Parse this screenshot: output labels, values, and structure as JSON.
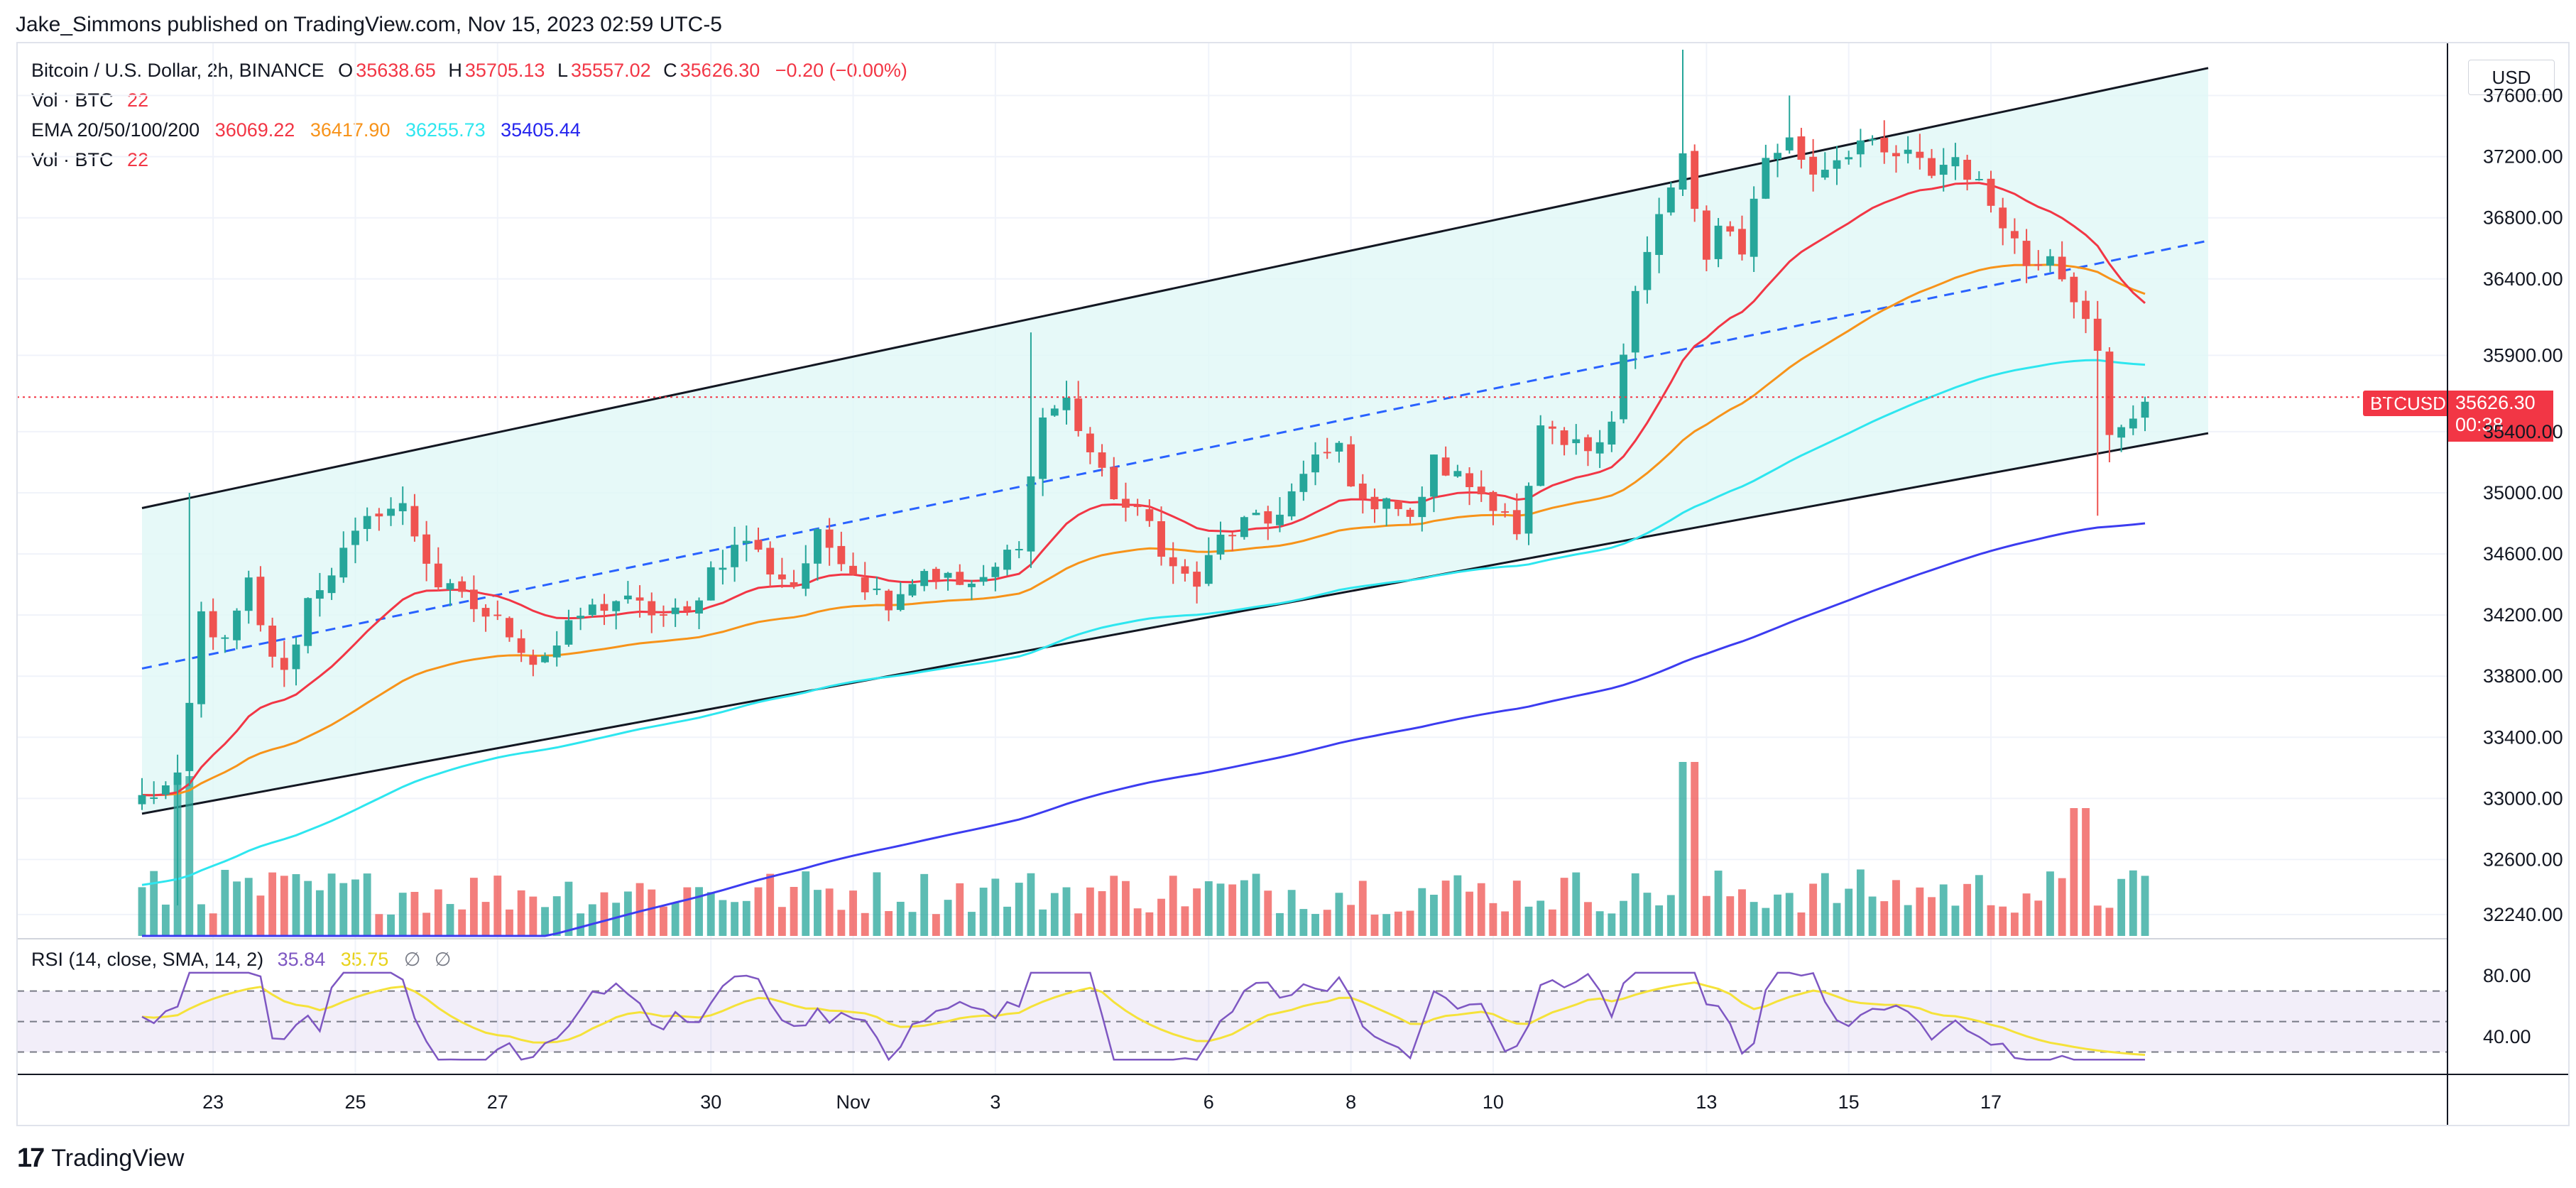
{
  "publisher": "Jake_Simmons published on TradingView.com, Nov 15, 2023 02:59 UTC-5",
  "legend": {
    "symbol": "Bitcoin / U.S. Dollar, 2h, BINANCE",
    "o_label": "O",
    "o": "35638.65",
    "h_label": "H",
    "h": "35705.13",
    "l_label": "L",
    "l": "35557.02",
    "c_label": "C",
    "c": "35626.30",
    "change": "−0.20 (−0.00%)",
    "vol1_label": "Vol · BTC",
    "vol1": "22",
    "ema_label": "EMA 20/50/100/200",
    "ema20": "36069.22",
    "ema50": "36417.90",
    "ema100": "36255.73",
    "ema200": "35405.44",
    "vol2_label": "Vol · BTC",
    "vol2": "22",
    "rsi_label": "RSI (14, close, SMA, 14, 2)",
    "rsi": "35.84",
    "rsi_sma": "35.75",
    "rsi_extra1": "∅",
    "rsi_extra2": "∅"
  },
  "currency": "USD",
  "last_price": {
    "symbol": "BTCUSD",
    "price": "35626.30",
    "countdown": "00:38"
  },
  "brand": "TradingView",
  "colors": {
    "up": "#26a69a",
    "down": "#ef5350",
    "ema20": "#f23645",
    "ema50": "#f7931a",
    "ema100": "#2ee6ef",
    "ema200": "#3c3cf0",
    "channel_fill": "#e0f7f6",
    "rsi": "#7e57c2",
    "rsi_sma": "#f5e23a"
  },
  "chart_data": {
    "type": "candlestick",
    "timeframe": "2h",
    "x_tick_labels": [
      "23",
      "25",
      "27",
      "30",
      "Nov",
      "3",
      "6",
      "8",
      "10",
      "13",
      "15",
      "17"
    ],
    "y_tick_labels": [
      "37600.00",
      "37200.00",
      "36800.00",
      "36400.00",
      "35900.00",
      "35400.00",
      "35000.00",
      "34600.00",
      "34200.00",
      "33800.00",
      "33400.00",
      "33000.00",
      "32600.00",
      "32240.00"
    ],
    "ylim": [
      32100,
      37900
    ],
    "price_anchors": [
      [
        0,
        33000
      ],
      [
        3,
        33100
      ],
      [
        4,
        33600
      ],
      [
        5,
        34200
      ],
      [
        7,
        34000
      ],
      [
        9,
        34400
      ],
      [
        10,
        34100
      ],
      [
        12,
        33800
      ],
      [
        14,
        34300
      ],
      [
        17,
        34600
      ],
      [
        20,
        34900
      ],
      [
        22,
        34900
      ],
      [
        25,
        34400
      ],
      [
        27,
        34300
      ],
      [
        29,
        34200
      ],
      [
        31,
        34100
      ],
      [
        33,
        33900
      ],
      [
        35,
        34000
      ],
      [
        37,
        34200
      ],
      [
        40,
        34300
      ],
      [
        44,
        34200
      ],
      [
        46,
        34200
      ],
      [
        48,
        34500
      ],
      [
        51,
        34700
      ],
      [
        53,
        34500
      ],
      [
        55,
        34400
      ],
      [
        57,
        34700
      ],
      [
        59,
        34600
      ],
      [
        61,
        34400
      ],
      [
        63,
        34300
      ],
      [
        66,
        34500
      ],
      [
        69,
        34400
      ],
      [
        71,
        34400
      ],
      [
        74,
        34700
      ],
      [
        75,
        35100
      ],
      [
        76,
        35500
      ],
      [
        78,
        35600
      ],
      [
        81,
        35100
      ],
      [
        83,
        34900
      ],
      [
        85,
        34800
      ],
      [
        87,
        34500
      ],
      [
        89,
        34400
      ],
      [
        91,
        34700
      ],
      [
        93,
        34800
      ],
      [
        95,
        34800
      ],
      [
        97,
        35000
      ],
      [
        99,
        35200
      ],
      [
        101,
        35300
      ],
      [
        103,
        34900
      ],
      [
        105,
        35000
      ],
      [
        107,
        34800
      ],
      [
        109,
        35200
      ],
      [
        111,
        35100
      ],
      [
        113,
        35000
      ],
      [
        115,
        34900
      ],
      [
        116,
        34700
      ],
      [
        117,
        35000
      ],
      [
        118,
        35400
      ],
      [
        120,
        35300
      ],
      [
        122,
        35300
      ],
      [
        124,
        35500
      ],
      [
        126,
        36300
      ],
      [
        128,
        36800
      ],
      [
        130,
        37200
      ],
      [
        131,
        36800
      ],
      [
        132,
        36500
      ],
      [
        133,
        36800
      ],
      [
        135,
        36600
      ],
      [
        137,
        37200
      ],
      [
        139,
        37300
      ],
      [
        141,
        37100
      ],
      [
        143,
        37200
      ],
      [
        145,
        37300
      ],
      [
        147,
        37200
      ],
      [
        149,
        37200
      ],
      [
        151,
        37100
      ],
      [
        153,
        37200
      ],
      [
        155,
        37000
      ],
      [
        157,
        36800
      ],
      [
        159,
        36500
      ],
      [
        161,
        36600
      ],
      [
        163,
        36300
      ],
      [
        165,
        35900
      ],
      [
        166,
        35350
      ],
      [
        167,
        35450
      ],
      [
        169,
        35600
      ]
    ],
    "volume_range_btc": [
      0,
      5000
    ],
    "indicators": [
      "EMA 20",
      "EMA 50",
      "EMA 100",
      "EMA 200",
      "Ascending channel",
      "Channel midline",
      "RSI 14",
      "RSI SMA 14"
    ],
    "rsi_levels": [
      70,
      50,
      30
    ],
    "rsi_ticks": [
      "80.00",
      "40.00"
    ]
  }
}
